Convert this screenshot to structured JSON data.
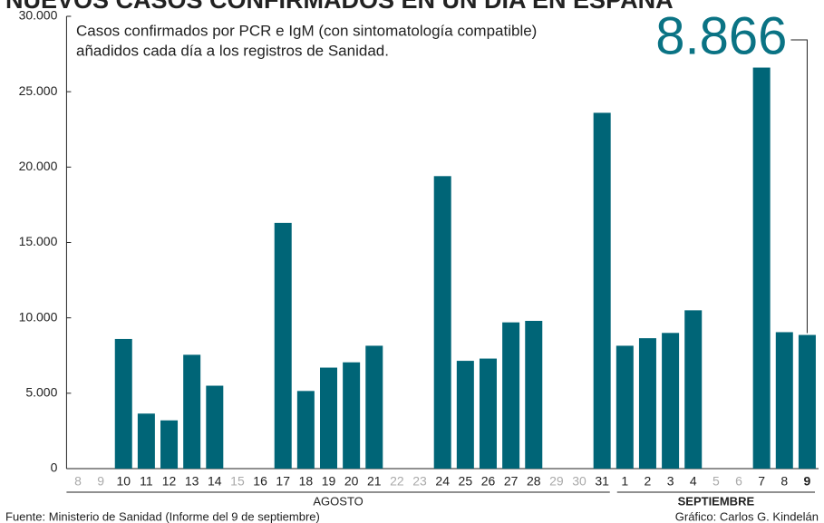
{
  "chart_data": {
    "type": "bar",
    "title": "NUEVOS CASOS CONFIRMADOS EN UN DÍA EN ESPAÑA",
    "subtitle": [
      "Casos confirmados por PCR e IgM (con sintomatología compatible)",
      "añadidos cada día a los registros de Sanidad."
    ],
    "categories": [
      "8",
      "9",
      "10",
      "11",
      "12",
      "13",
      "14",
      "15",
      "16",
      "17",
      "18",
      "19",
      "20",
      "21",
      "22",
      "23",
      "24",
      "25",
      "26",
      "27",
      "28",
      "29",
      "30",
      "31",
      "1",
      "2",
      "3",
      "4",
      "5",
      "6",
      "7",
      "8",
      "9"
    ],
    "category_label_colors": [
      "#aaaaaa",
      "#aaaaaa",
      "#222222",
      "#222222",
      "#222222",
      "#222222",
      "#222222",
      "#aaaaaa",
      "#222222",
      "#222222",
      "#222222",
      "#222222",
      "#222222",
      "#222222",
      "#aaaaaa",
      "#aaaaaa",
      "#222222",
      "#222222",
      "#222222",
      "#222222",
      "#222222",
      "#aaaaaa",
      "#aaaaaa",
      "#222222",
      "#222222",
      "#222222",
      "#222222",
      "#222222",
      "#aaaaaa",
      "#aaaaaa",
      "#222222",
      "#222222",
      "#222222"
    ],
    "values": [
      null,
      null,
      8600,
      3650,
      3200,
      7550,
      5500,
      null,
      null,
      16300,
      5150,
      6700,
      7050,
      8150,
      null,
      null,
      19400,
      7150,
      7300,
      9700,
      9800,
      null,
      null,
      23600,
      8150,
      8650,
      9000,
      10500,
      null,
      null,
      26600,
      9050,
      8866
    ],
    "value_labels": [
      null,
      null,
      null,
      null,
      null,
      null,
      null,
      null,
      null,
      null,
      null,
      null,
      null,
      null,
      null,
      null,
      null,
      null,
      null,
      null,
      null,
      null,
      null,
      null,
      null,
      null,
      null,
      null,
      null,
      null,
      null,
      null,
      "8.866"
    ],
    "month_groups": [
      "AGOSTO",
      "SEPTIEMBRE"
    ],
    "color": "#006577",
    "highlight_color": "#0a7384",
    "ylim": [
      0,
      30000
    ],
    "yticks": [
      0,
      {
        "value": 5000,
        "label": "5.000"
      },
      {
        "value": 10000,
        "label": "10.000"
      },
      {
        "value": 15000,
        "label": "15.000"
      },
      {
        "value": 20000,
        "label": "20.000"
      },
      {
        "value": 25000,
        "label": "25.000"
      },
      {
        "value": 30000,
        "label": "30.000"
      }
    ],
    "source": "Fuente: Ministerio de Sanidad (Informe del 9 de septiembre)",
    "credit": "Gráfico: Carlos G. Kindelán"
  }
}
